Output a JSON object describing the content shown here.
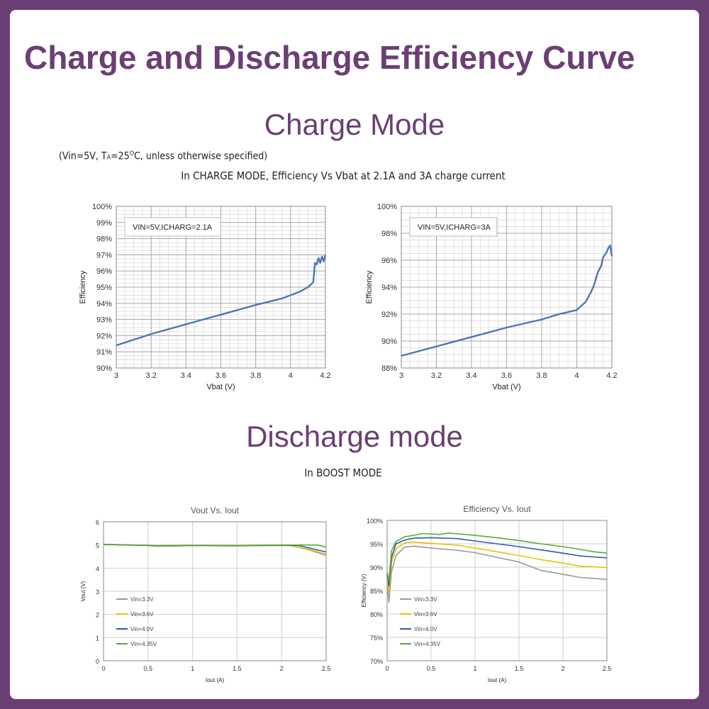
{
  "page": {
    "title": "Charge and Discharge Efficiency Curve",
    "charge_heading": "Charge Mode",
    "discharge_heading": "Discharge mode",
    "conditions_note": "(Vin=5V, T",
    "conditions_sub": "A",
    "conditions_rest": "=25",
    "conditions_deg": "O",
    "conditions_tail": "C, unless otherwise specified)",
    "charge_caption": "In CHARGE MODE, Efficiency Vs Vbat at 2.1A and 3A charge current",
    "boost_caption": "In BOOST MODE"
  },
  "colors": {
    "brand": "#6b3f74",
    "blue": "#4a76b6",
    "grey": "#9a9a9a",
    "yellow": "#f2c000",
    "dark_blue": "#2c5ea8",
    "green": "#5aab3c"
  },
  "chart_data": [
    {
      "type": "line",
      "title": "",
      "annotation": "VIN=5V,ICHARG=2.1A",
      "xlabel": "Vbat (V)",
      "ylabel": "Efficiency",
      "xlim": [
        3,
        4.2
      ],
      "ylim": [
        90,
        100
      ],
      "xticks": [
        3,
        3.2,
        3.4,
        3.6,
        3.8,
        4,
        4.2
      ],
      "xtick_labels": [
        "3",
        "3.2",
        "3.4",
        "3.6",
        "3.8",
        "4",
        "4.2"
      ],
      "yticks": [
        90,
        91,
        92,
        93,
        94,
        95,
        96,
        97,
        98,
        99,
        100
      ],
      "ytick_labels": [
        "90%",
        "91%",
        "92%",
        "93%",
        "94%",
        "95%",
        "96%",
        "97%",
        "98%",
        "99%",
        "100%"
      ],
      "grid": true,
      "series": [
        {
          "name": "VIN=5V,ICHARG=2.1A",
          "color": "#4a76b6",
          "x": [
            3.0,
            3.2,
            3.4,
            3.6,
            3.8,
            3.95,
            4.0,
            4.05,
            4.1,
            4.13,
            4.14,
            4.15,
            4.16,
            4.17,
            4.18,
            4.19,
            4.2
          ],
          "y": [
            91.4,
            92.1,
            92.7,
            93.3,
            93.9,
            94.3,
            94.5,
            94.7,
            95.0,
            95.3,
            96.5,
            96.4,
            96.8,
            96.5,
            96.9,
            96.6,
            97.0
          ]
        }
      ]
    },
    {
      "type": "line",
      "title": "",
      "annotation": "VIN=5V,ICHARG=3A",
      "xlabel": "Vbat (V)",
      "ylabel": "Efficiency",
      "xlim": [
        3,
        4.2
      ],
      "ylim": [
        88,
        100
      ],
      "xticks": [
        3,
        3.2,
        3.4,
        3.6,
        3.8,
        4,
        4.2
      ],
      "xtick_labels": [
        "3",
        "3.2",
        "3.4",
        "3.6",
        "3.8",
        "4",
        "4.2"
      ],
      "yticks": [
        88,
        90,
        92,
        94,
        96,
        98,
        100
      ],
      "ytick_labels": [
        "88%",
        "90%",
        "92%",
        "94%",
        "96%",
        "98%",
        "100%"
      ],
      "grid": true,
      "series": [
        {
          "name": "VIN=5V,ICHARG=3A",
          "color": "#4a76b6",
          "x": [
            3.0,
            3.2,
            3.4,
            3.6,
            3.8,
            3.9,
            4.0,
            4.05,
            4.08,
            4.1,
            4.12,
            4.14,
            4.15,
            4.16,
            4.17,
            4.18,
            4.19,
            4.2
          ],
          "y": [
            88.9,
            89.6,
            90.3,
            91.0,
            91.6,
            92.0,
            92.3,
            92.9,
            93.6,
            94.2,
            95.1,
            95.6,
            96.2,
            96.4,
            96.6,
            96.9,
            97.1,
            96.3
          ]
        }
      ]
    },
    {
      "type": "line",
      "title": "Vout Vs. Iout",
      "xlabel": "Iout (A)",
      "ylabel": "Vout (V)",
      "xlim": [
        0,
        2.5
      ],
      "ylim": [
        0,
        6
      ],
      "xticks": [
        0,
        0.5,
        1,
        1.5,
        2,
        2.5
      ],
      "xtick_labels": [
        "0",
        "0.5",
        "1",
        "1.5",
        "2",
        "2.5"
      ],
      "yticks": [
        0,
        1,
        2,
        3,
        4,
        5,
        6
      ],
      "ytick_labels": [
        "0",
        "1",
        "2",
        "3",
        "4",
        "5",
        "6"
      ],
      "grid": true,
      "legend": "bottom-left",
      "series": [
        {
          "name": "Vin=3.3V",
          "color": "#9a9a9a",
          "x": [
            0,
            0.5,
            0.6,
            1,
            1.5,
            2,
            2.1,
            2.3,
            2.5
          ],
          "y": [
            5.02,
            4.98,
            4.95,
            4.97,
            4.96,
            4.98,
            4.97,
            4.8,
            4.55
          ]
        },
        {
          "name": "Vin=3.6V",
          "color": "#f2c000",
          "x": [
            0,
            0.5,
            0.6,
            1,
            1.5,
            2,
            2.1,
            2.3,
            2.5
          ],
          "y": [
            5.02,
            4.98,
            4.95,
            4.97,
            4.96,
            4.98,
            4.97,
            4.82,
            4.6
          ]
        },
        {
          "name": "Vin=4.0V",
          "color": "#2c5ea8",
          "x": [
            0,
            0.5,
            0.6,
            1,
            1.5,
            2,
            2.2,
            2.5
          ],
          "y": [
            5.02,
            4.98,
            4.96,
            4.98,
            4.97,
            4.99,
            4.97,
            4.7
          ]
        },
        {
          "name": "Vin=4.35V",
          "color": "#5aab3c",
          "x": [
            0,
            0.5,
            0.6,
            1,
            1.5,
            2,
            2.4,
            2.5
          ],
          "y": [
            5.03,
            4.99,
            4.97,
            4.99,
            4.98,
            5.0,
            5.0,
            4.9
          ]
        }
      ]
    },
    {
      "type": "line",
      "title": "Efficiency Vs. Iout",
      "xlabel": "Iout (A)",
      "ylabel": "Efficiency (V)",
      "xlim": [
        0,
        2.5
      ],
      "ylim": [
        70,
        100
      ],
      "xticks": [
        0,
        0.5,
        1,
        1.5,
        2,
        2.5
      ],
      "xtick_labels": [
        "0",
        "0.5",
        "1",
        "1.5",
        "2",
        "2.5"
      ],
      "yticks": [
        70,
        75,
        80,
        85,
        90,
        95,
        100
      ],
      "ytick_labels": [
        "70%",
        "75%",
        "80%",
        "85%",
        "90%",
        "95%",
        "100%"
      ],
      "grid": true,
      "legend": "bottom-left",
      "series": [
        {
          "name": "Vin=3.3V",
          "color": "#9a9a9a",
          "x": [
            0,
            0.02,
            0.05,
            0.1,
            0.2,
            0.3,
            0.5,
            0.8,
            1.0,
            1.25,
            1.5,
            1.75,
            2.0,
            2.2,
            2.35,
            2.5
          ],
          "y": [
            87,
            82.5,
            89,
            92.5,
            94.3,
            94.5,
            94.1,
            93.6,
            93.1,
            92.1,
            91.1,
            89.3,
            88.5,
            87.8,
            87.6,
            87.4
          ]
        },
        {
          "name": "Vin=3.6V",
          "color": "#f2c000",
          "x": [
            0,
            0.02,
            0.05,
            0.1,
            0.2,
            0.3,
            0.5,
            0.8,
            1.0,
            1.25,
            1.5,
            1.75,
            2.0,
            2.2,
            2.35,
            2.5
          ],
          "y": [
            88,
            84.5,
            91,
            94,
            95.2,
            95.4,
            95.1,
            94.7,
            94.1,
            93.3,
            92.5,
            91.6,
            90.9,
            90.2,
            90.1,
            89.9
          ]
        },
        {
          "name": "Vin=4.0V",
          "color": "#2c5ea8",
          "x": [
            0,
            0.02,
            0.05,
            0.1,
            0.2,
            0.3,
            0.5,
            0.8,
            1.0,
            1.25,
            1.5,
            1.75,
            2.0,
            2.2,
            2.35,
            2.5
          ],
          "y": [
            88.5,
            86,
            92,
            95,
            95.8,
            96.2,
            96.3,
            96.1,
            95.6,
            95.0,
            94.4,
            93.7,
            93.0,
            92.4,
            92.2,
            92.0
          ]
        },
        {
          "name": "Vin=4.35V",
          "color": "#5aab3c",
          "x": [
            0,
            0.02,
            0.05,
            0.1,
            0.2,
            0.3,
            0.4,
            0.6,
            0.7,
            1.0,
            1.25,
            1.5,
            1.75,
            2.0,
            2.2,
            2.35,
            2.5
          ],
          "y": [
            89,
            87,
            93.5,
            95.5,
            96.5,
            96.8,
            97.2,
            97.0,
            97.3,
            96.8,
            96.3,
            95.7,
            95.0,
            94.4,
            93.8,
            93.3,
            93.0
          ]
        }
      ]
    }
  ]
}
